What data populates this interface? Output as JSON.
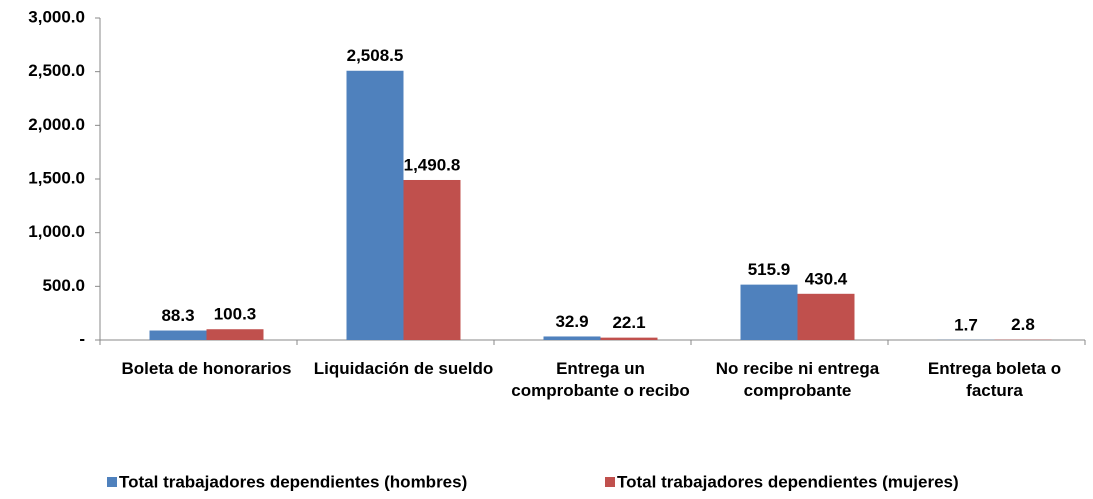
{
  "chart_data": {
    "type": "bar",
    "categories": [
      "Boleta de honorarios",
      "Liquidación de sueldo",
      "Entrega un comprobante o recibo",
      "No recibe ni entrega comprobante",
      "Entrega boleta o factura"
    ],
    "series": [
      {
        "name": "Total trabajadores dependientes (hombres)",
        "color": "#4f81bd",
        "values": [
          88.3,
          2508.5,
          32.9,
          515.9,
          1.7
        ],
        "value_labels": [
          "88.3",
          "2,508.5",
          "32.9",
          "515.9",
          "1.7"
        ]
      },
      {
        "name": "Total trabajadores dependientes (mujeres)",
        "color": "#c0504d",
        "values": [
          100.3,
          1490.8,
          22.1,
          430.4,
          2.8
        ],
        "value_labels": [
          "100.3",
          "1,490.8",
          "22.1",
          "430.4",
          "2.8"
        ]
      }
    ],
    "ylim": [
      0,
      3000
    ],
    "yticks": [
      {
        "value": 0,
        "label": "-"
      },
      {
        "value": 500,
        "label": "500.0"
      },
      {
        "value": 1000,
        "label": "1,000.0"
      },
      {
        "value": 1500,
        "label": "1,500.0"
      },
      {
        "value": 2000,
        "label": "2,000.0"
      },
      {
        "value": 2500,
        "label": "2,500.0"
      },
      {
        "value": 3000,
        "label": "3,000.0"
      }
    ],
    "grid": false,
    "legend": "bottom"
  }
}
